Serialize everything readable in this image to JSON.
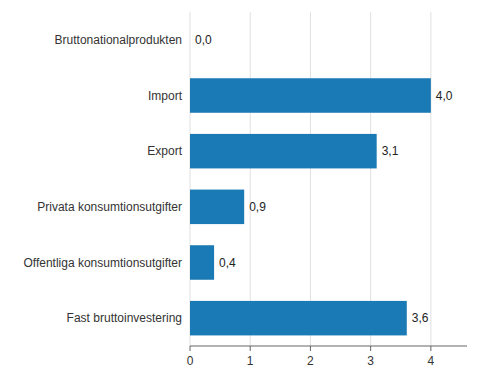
{
  "chart_data": {
    "type": "bar",
    "orientation": "horizontal",
    "categories": [
      "Fast bruttoinvestering",
      "Offentliga konsumtionsutgifter",
      "Privata konsumtionsutgifter",
      "Export",
      "Import",
      "Bruttonationalprodukten"
    ],
    "values": [
      3.6,
      0.4,
      0.9,
      3.1,
      4.0,
      0.0
    ],
    "value_labels": [
      "3,6",
      "0,4",
      "0,9",
      "3,1",
      "4,0",
      "0,0"
    ],
    "data_labels": true,
    "color": "#1a7ab5",
    "xlim": [
      0,
      4.6
    ],
    "xticks": [
      0,
      1,
      2,
      3,
      4
    ],
    "grid": true
  }
}
